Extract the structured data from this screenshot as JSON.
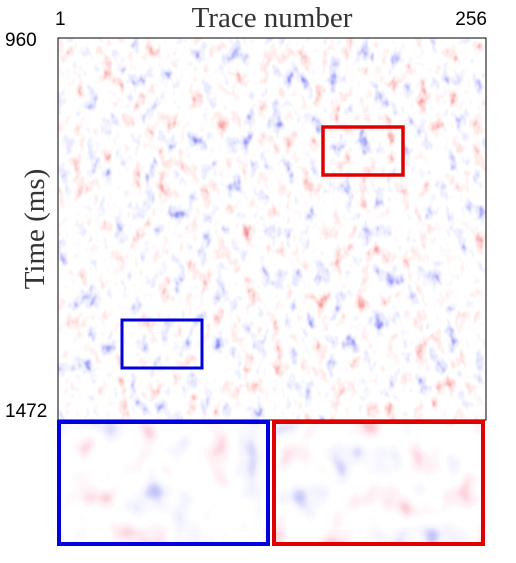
{
  "figure": {
    "x_label": "Trace number",
    "x_ticks": [
      "1",
      "256"
    ],
    "y_label": "Time (ms)",
    "y_ticks": [
      "960",
      "1472"
    ]
  }
}
